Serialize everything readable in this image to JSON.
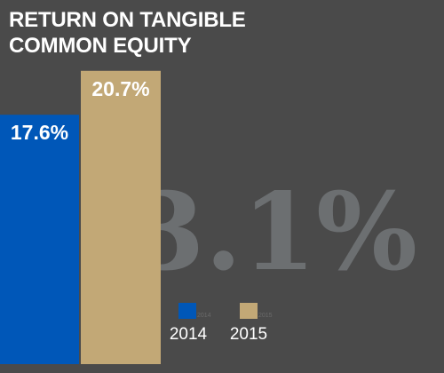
{
  "chart_data": {
    "type": "bar",
    "title_lines": [
      "RETURN ON TANGIBLE",
      "COMMON EQUITY"
    ],
    "categories": [
      "2014",
      "2015"
    ],
    "values": [
      17.6,
      20.7
    ],
    "value_labels": [
      "17.6%",
      "20.7%"
    ],
    "colors": [
      "#0057b8",
      "#c2a876"
    ],
    "ylim": [
      0,
      25.7
    ],
    "highlight": "3.1%",
    "legend": {
      "position": "bottom-center",
      "entries": [
        "2014",
        "2015"
      ]
    },
    "grid": false
  }
}
